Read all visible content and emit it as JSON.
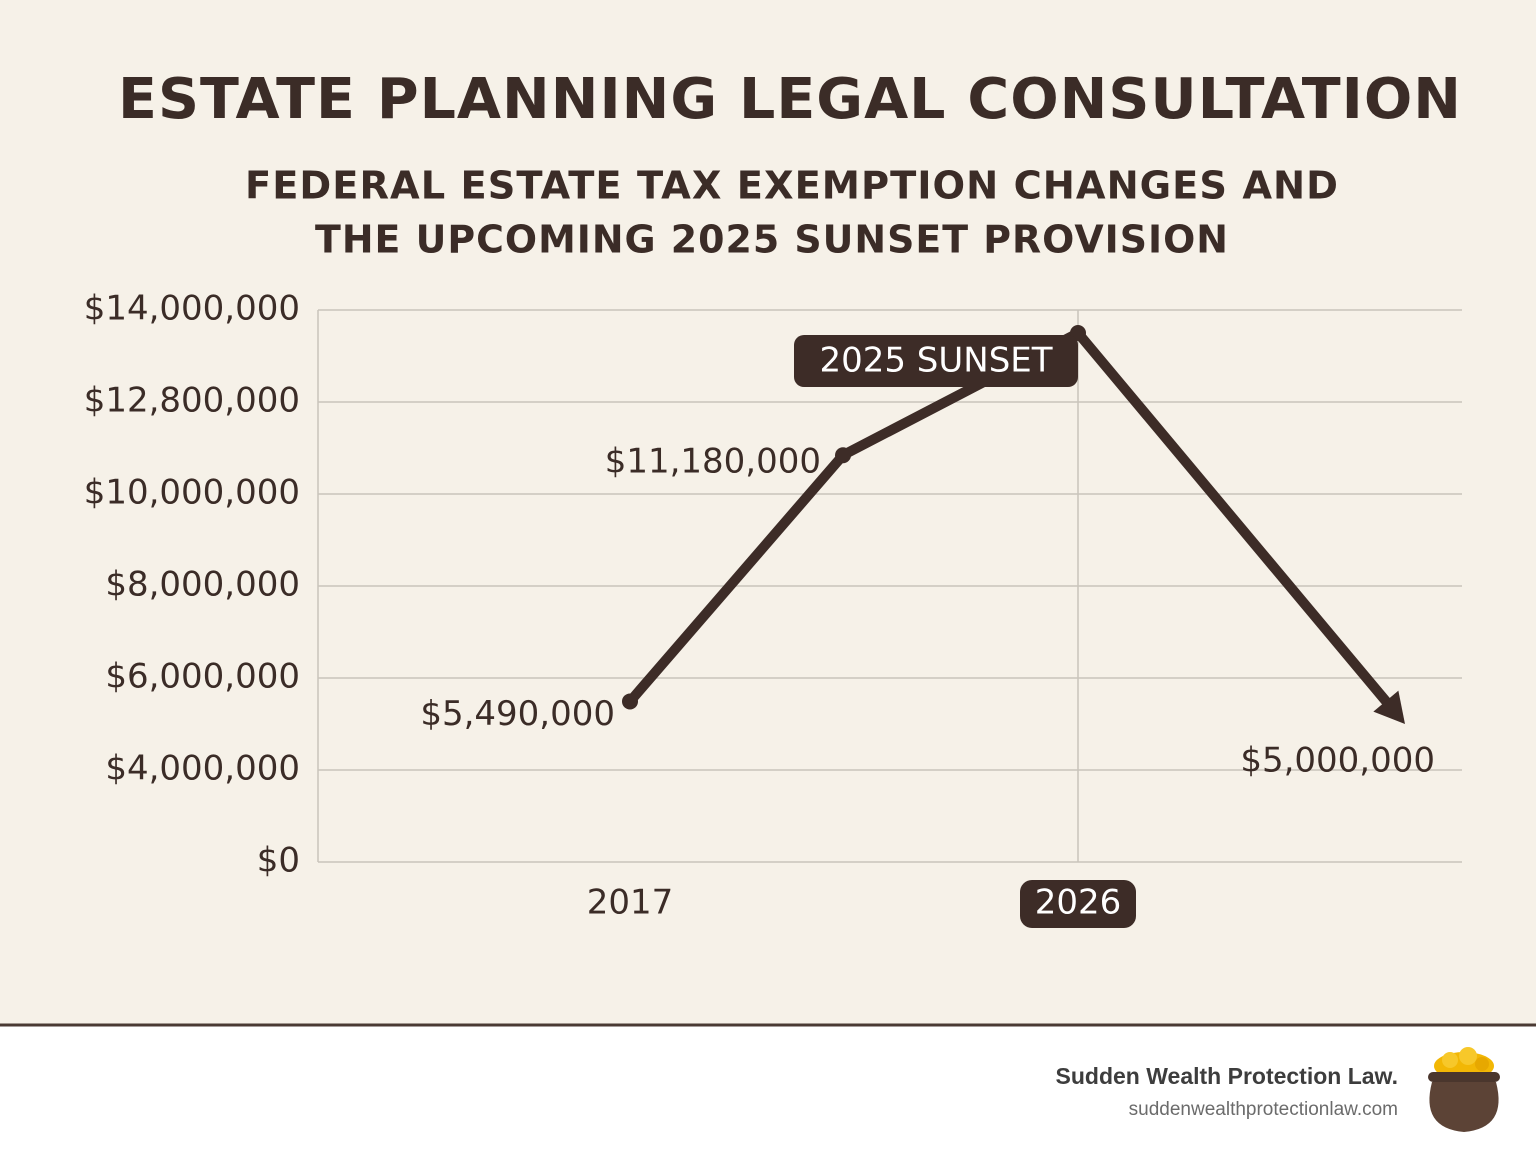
{
  "chart_data": {
    "type": "line",
    "title": "ESTATE PLANNING LEGAL CONSULTATION",
    "subtitle": [
      "FEDERAL ESTATE TAX EXEMPTION CHANGES AND",
      "THE UPCOMING 2025 SUNSET PROVISION"
    ],
    "categories": [
      "2017",
      null,
      "2026",
      null
    ],
    "highlighted_category": "2026",
    "series": [
      {
        "name": null,
        "color": "#3d2c27",
        "values": [
          5490000,
          11180000,
          13700000,
          5000000
        ],
        "value_labels": [
          "$5,490,000",
          "$11,180,000",
          null,
          "$5,000,000"
        ]
      }
    ],
    "annotation": "2025 SUNSET",
    "ylim": [
      0,
      14000000
    ],
    "yticks": [
      {
        "value": 0,
        "label": "$0"
      },
      {
        "value": 4000000,
        "label": "$4,000,000"
      },
      {
        "value": 6000000,
        "label": "$6,000,000"
      },
      {
        "value": 8000000,
        "label": "$8,000,000"
      },
      {
        "value": 10000000,
        "label": "$10,000,000"
      },
      {
        "value": 12800000,
        "label": "$12,800,000"
      },
      {
        "value": 14000000,
        "label": "$14,000,000"
      }
    ],
    "grid": true
  },
  "footer": {
    "brand": "Sudden Wealth Protection Law.",
    "url": "suddenwealthprotectionlaw.com"
  }
}
